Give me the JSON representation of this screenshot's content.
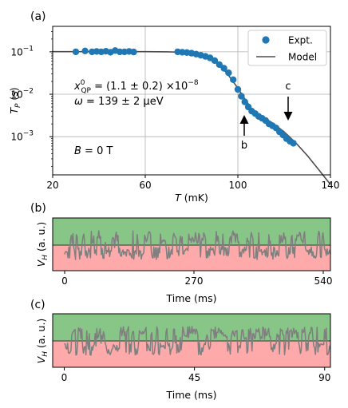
{
  "chart_data": [
    {
      "type": "scatter",
      "panel_label": "(a)",
      "xlabel_sym": "T",
      "xlabel_unit": " (mK)",
      "ylabel_sym": "T",
      "ylabel_sub": "P",
      "ylabel_unit": " (s)",
      "xlim": [
        20,
        140
      ],
      "ylim_log10": [
        -3.9,
        -0.4
      ],
      "yscale": "log",
      "grid": true,
      "legend_placement": "top-right",
      "xticks": [
        20,
        60,
        100,
        140
      ],
      "yticks": [
        {
          "base": "10",
          "exp": "−1",
          "log": -1
        },
        {
          "base": "10",
          "exp": "−2",
          "log": -2
        },
        {
          "base": "10",
          "exp": "−3",
          "log": -3
        }
      ],
      "series": [
        {
          "name": "Expt.",
          "kind": "markers",
          "color": "#1f77b4",
          "x": [
            30,
            34,
            37,
            39,
            41,
            43,
            45,
            47,
            49,
            51,
            53,
            55,
            74,
            76,
            78,
            80,
            82,
            84,
            86,
            88,
            90,
            92,
            94,
            96,
            98,
            100,
            101.5,
            103,
            104.5,
            106,
            107.5,
            109,
            110.5,
            112,
            113.5,
            115,
            116.5,
            118,
            119.5,
            121,
            122.5,
            124
          ],
          "y": [
            0.1,
            0.105,
            0.1,
            0.102,
            0.1,
            0.103,
            0.098,
            0.107,
            0.1,
            0.1,
            0.102,
            0.099,
            0.1,
            0.098,
            0.096,
            0.093,
            0.088,
            0.083,
            0.078,
            0.072,
            0.062,
            0.05,
            0.041,
            0.032,
            0.022,
            0.013,
            0.009,
            0.0066,
            0.005,
            0.004,
            0.0035,
            0.003,
            0.0027,
            0.0024,
            0.002,
            0.0018,
            0.0016,
            0.0013,
            0.0011,
            0.0009,
            0.00078,
            0.0007
          ]
        },
        {
          "name": "Model",
          "kind": "line",
          "color": "#4d4d4d",
          "x": [
            20,
            40,
            60,
            70,
            75,
            80,
            85,
            90,
            95,
            100,
            103,
            106,
            110,
            115,
            120,
            125,
            130,
            135,
            140
          ],
          "y": [
            0.101,
            0.101,
            0.101,
            0.1,
            0.098,
            0.093,
            0.08,
            0.06,
            0.033,
            0.014,
            0.0078,
            0.0045,
            0.0031,
            0.0021,
            0.0013,
            0.00072,
            0.00036,
            0.000165,
            7.5e-05
          ]
        }
      ],
      "annotations": {
        "xqp_prefix": "x",
        "xqp_sup": "0",
        "xqp_sub": "QP",
        "xqp_value": " = (1.1 ± 0.2) ×10",
        "xqp_exp": "−8",
        "omega_sym": "ω",
        "omega_value": " = 139 ± 2 μeV",
        "field_sym": "B",
        "field_value": " = 0 T",
        "arrow_b": "b",
        "arrow_c": "c"
      }
    },
    {
      "type": "line",
      "panel_label": "(b)",
      "xlabel": "Time (ms)",
      "ylabel_sym": "V",
      "ylabel_sub": "H",
      "ylabel_unit": " (a. u.)",
      "xlim": [
        -25,
        555
      ],
      "xticks": [
        0,
        270,
        540
      ],
      "colors": {
        "upper_band": "#88c688",
        "lower_band": "#ffaaaa",
        "trace": "#7f7f7f"
      },
      "trace": {
        "x_range": [
          0,
          555
        ],
        "points": 320,
        "style": "two-level telegraph noise"
      }
    },
    {
      "type": "line",
      "panel_label": "(c)",
      "xlabel": "Time (ms)",
      "ylabel_sym": "V",
      "ylabel_sub": "H",
      "ylabel_unit": " (a. u.)",
      "xlim": [
        -4,
        92
      ],
      "xticks": [
        0,
        45,
        90
      ],
      "colors": {
        "upper_band": "#88c688",
        "lower_band": "#ffaaaa",
        "trace": "#7f7f7f"
      },
      "trace": {
        "x_range": [
          0,
          92
        ],
        "points": 320,
        "style": "two-level telegraph noise"
      }
    }
  ]
}
